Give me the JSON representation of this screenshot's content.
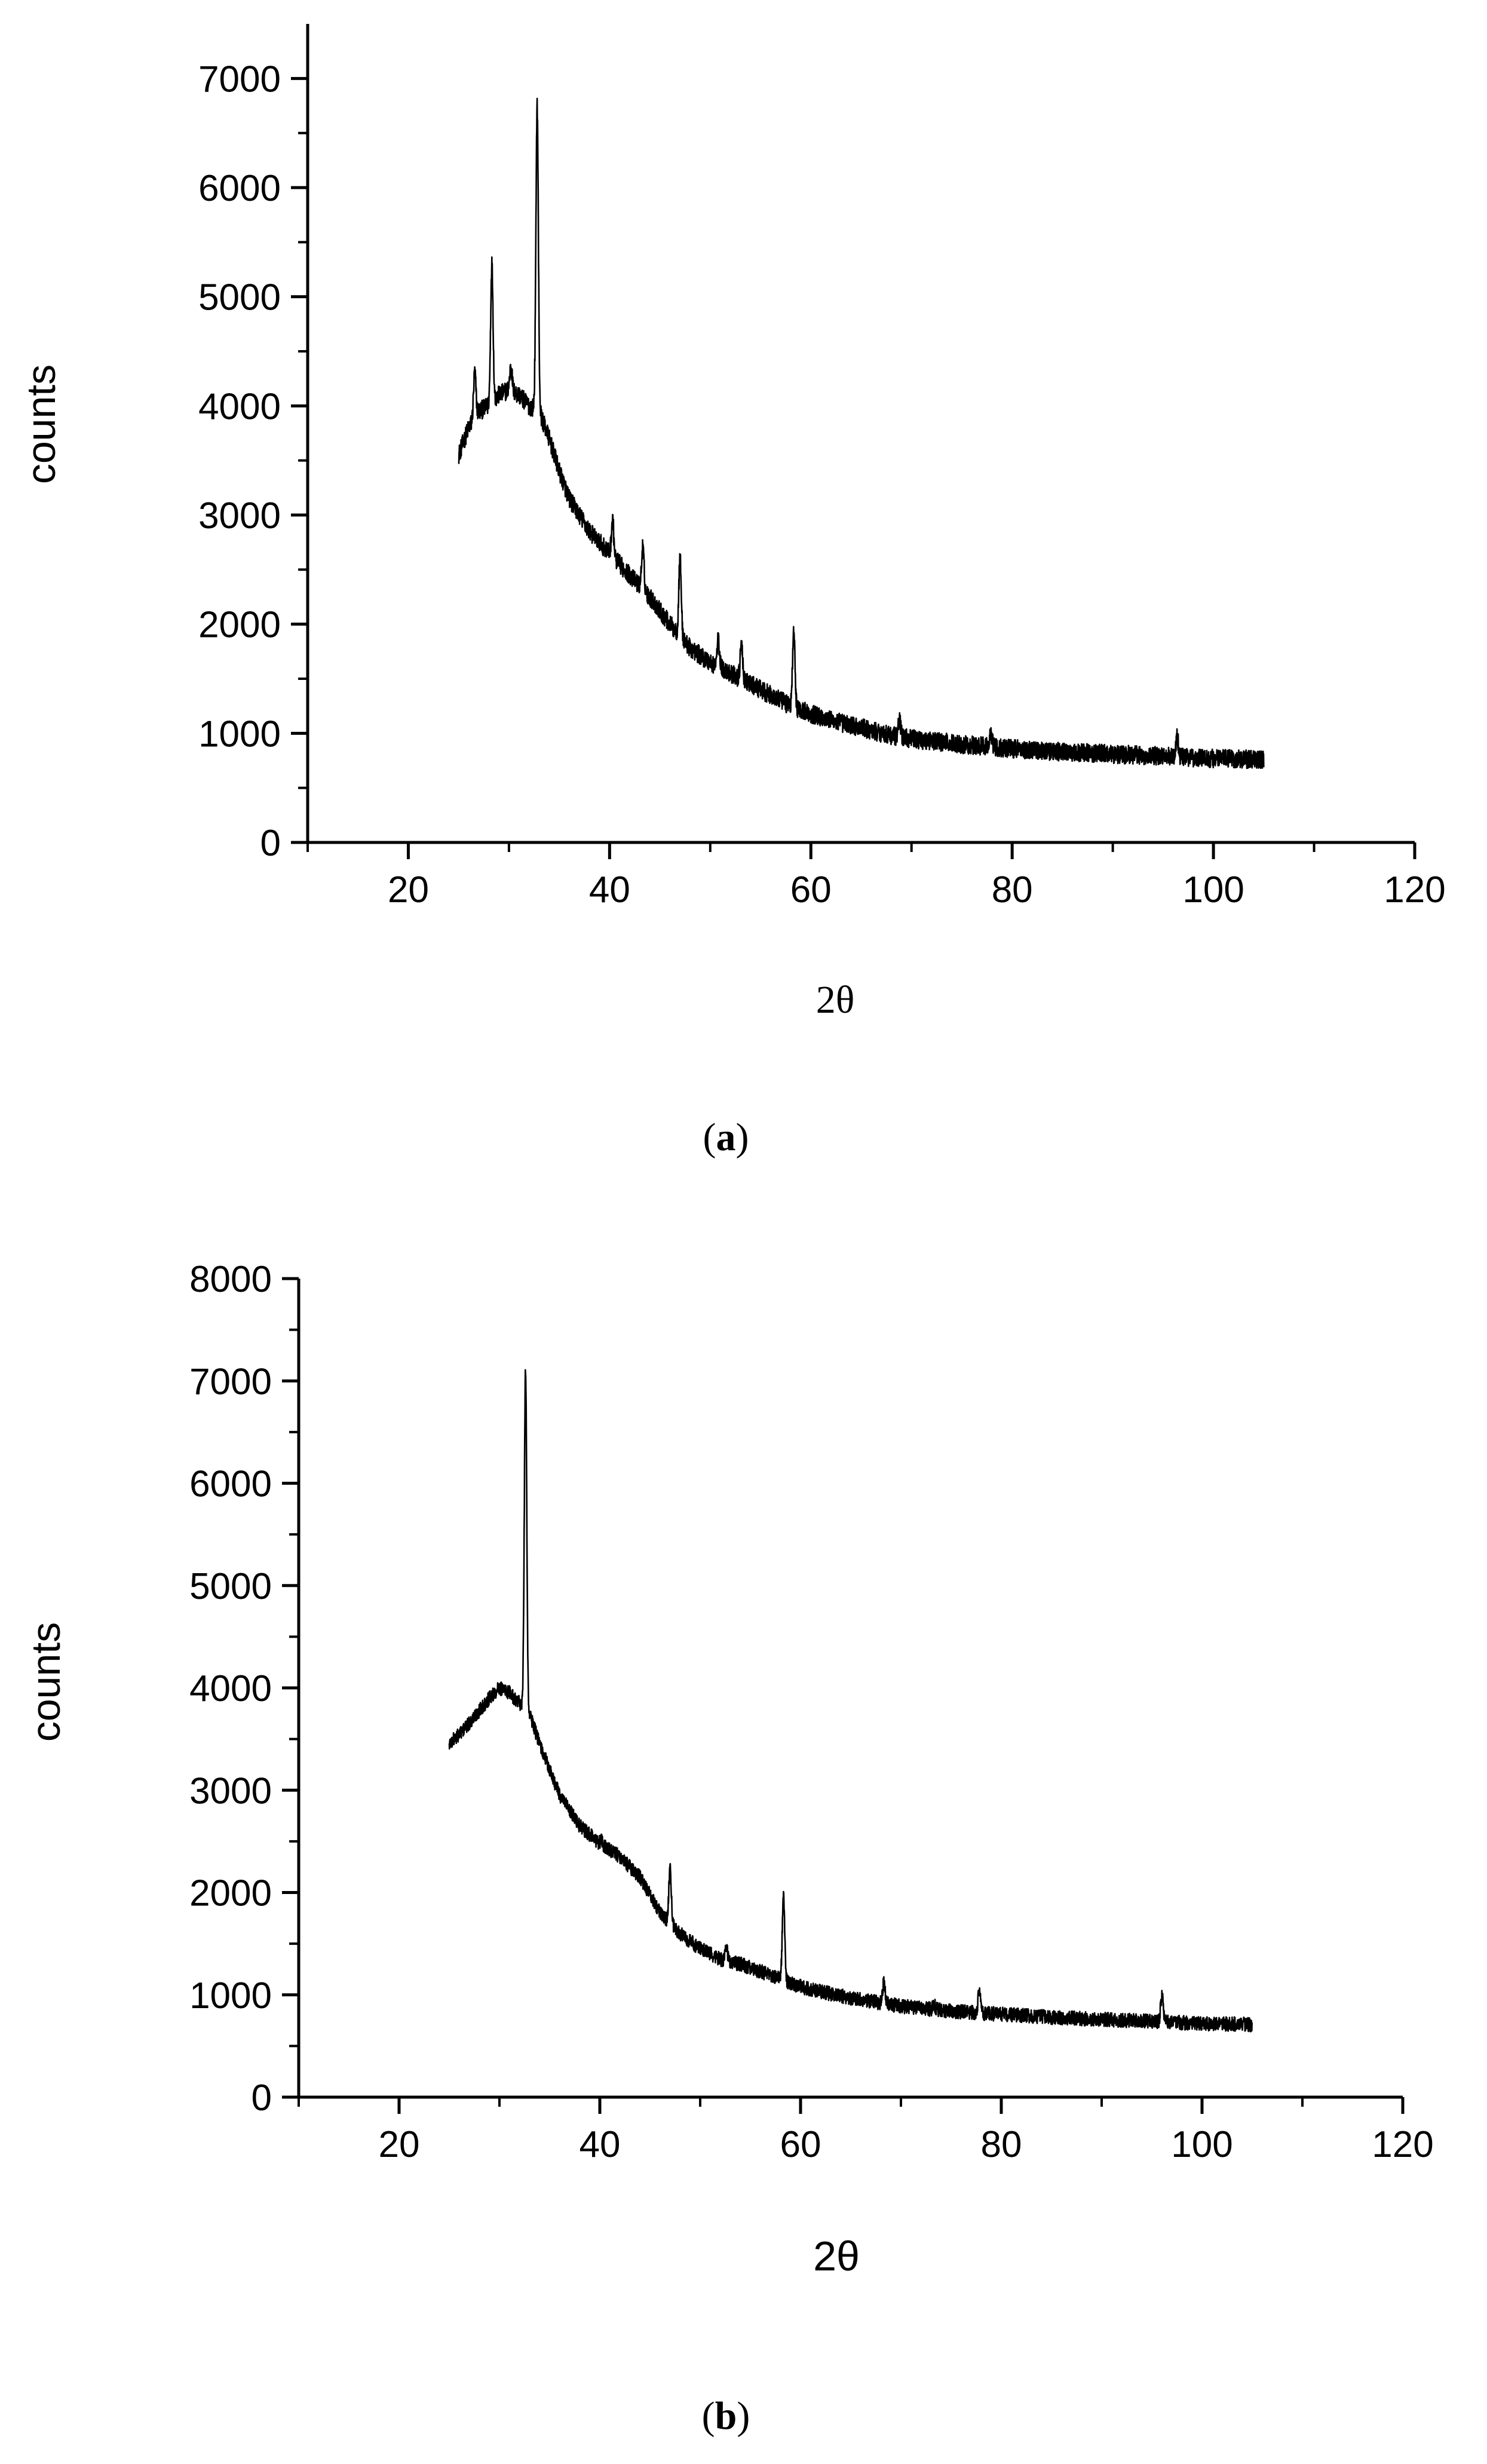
{
  "chart_data": [
    {
      "panel": "a",
      "caption_letter": "a",
      "type": "line",
      "xlabel": "2θ",
      "ylabel": "counts",
      "xlim": [
        10,
        120
      ],
      "ylim": [
        0,
        7500
      ],
      "xticks": [
        20,
        40,
        60,
        80,
        100,
        120
      ],
      "yticks": [
        0,
        1000,
        2000,
        3000,
        4000,
        5000,
        6000,
        7000
      ],
      "xtick_labels": [
        "20",
        "40",
        "60",
        "80",
        "100",
        "120"
      ],
      "ytick_labels": [
        "0",
        "1000",
        "2000",
        "3000",
        "4000",
        "5000",
        "6000",
        "7000"
      ],
      "grid": false,
      "legend": "none",
      "line_color": "#000000",
      "x_range": [
        25,
        105
      ],
      "baseline": [
        [
          25,
          3550
        ],
        [
          26,
          3800
        ],
        [
          27,
          3950
        ],
        [
          28,
          4000
        ],
        [
          29,
          4100
        ],
        [
          30,
          4150
        ],
        [
          31,
          4100
        ],
        [
          32,
          4000
        ],
        [
          33,
          3950
        ],
        [
          34,
          3700
        ],
        [
          35,
          3400
        ],
        [
          36,
          3150
        ],
        [
          38,
          2850
        ],
        [
          40,
          2650
        ],
        [
          42,
          2450
        ],
        [
          44,
          2250
        ],
        [
          46,
          2000
        ],
        [
          48,
          1780
        ],
        [
          50,
          1650
        ],
        [
          52,
          1550
        ],
        [
          54,
          1450
        ],
        [
          56,
          1350
        ],
        [
          58,
          1250
        ],
        [
          60,
          1180
        ],
        [
          62,
          1120
        ],
        [
          65,
          1050
        ],
        [
          68,
          980
        ],
        [
          70,
          950
        ],
        [
          75,
          900
        ],
        [
          80,
          860
        ],
        [
          85,
          830
        ],
        [
          90,
          810
        ],
        [
          95,
          790
        ],
        [
          100,
          770
        ],
        [
          105,
          760
        ]
      ],
      "peaks": [
        [
          26.6,
          4300
        ],
        [
          28.3,
          5300
        ],
        [
          30.2,
          4350
        ],
        [
          32.8,
          6750
        ],
        [
          40.3,
          2950
        ],
        [
          43.3,
          2700
        ],
        [
          47.0,
          2600
        ],
        [
          50.8,
          1850
        ],
        [
          53.1,
          1800
        ],
        [
          58.3,
          1920
        ],
        [
          68.8,
          1120
        ],
        [
          77.9,
          1000
        ],
        [
          96.4,
          970
        ]
      ],
      "noise": 85
    },
    {
      "panel": "b",
      "caption_letter": "b",
      "type": "line",
      "xlabel": "2θ",
      "ylabel": "counts",
      "xlim": [
        10,
        120
      ],
      "ylim": [
        0,
        8000
      ],
      "xticks": [
        20,
        40,
        60,
        80,
        100,
        120
      ],
      "yticks": [
        0,
        1000,
        2000,
        3000,
        4000,
        5000,
        6000,
        7000,
        8000
      ],
      "xtick_labels": [
        "20",
        "40",
        "60",
        "80",
        "100",
        "120"
      ],
      "ytick_labels": [
        "0",
        "1000",
        "2000",
        "3000",
        "4000",
        "5000",
        "6000",
        "7000",
        "8000"
      ],
      "grid": false,
      "legend": "none",
      "line_color": "#000000",
      "x_range": [
        25,
        105
      ],
      "baseline": [
        [
          25,
          3450
        ],
        [
          26,
          3550
        ],
        [
          27,
          3650
        ],
        [
          28,
          3780
        ],
        [
          29,
          3900
        ],
        [
          30,
          4000
        ],
        [
          31,
          3950
        ],
        [
          32,
          3850
        ],
        [
          33,
          3750
        ],
        [
          34,
          3450
        ],
        [
          35,
          3200
        ],
        [
          36,
          2950
        ],
        [
          38,
          2650
        ],
        [
          40,
          2480
        ],
        [
          42,
          2350
        ],
        [
          44,
          2150
        ],
        [
          46,
          1800
        ],
        [
          48,
          1600
        ],
        [
          50,
          1450
        ],
        [
          52,
          1350
        ],
        [
          54,
          1300
        ],
        [
          56,
          1230
        ],
        [
          58,
          1150
        ],
        [
          60,
          1080
        ],
        [
          62,
          1030
        ],
        [
          65,
          970
        ],
        [
          68,
          920
        ],
        [
          70,
          890
        ],
        [
          75,
          840
        ],
        [
          80,
          810
        ],
        [
          85,
          780
        ],
        [
          90,
          760
        ],
        [
          95,
          740
        ],
        [
          100,
          720
        ],
        [
          105,
          710
        ]
      ],
      "peaks": [
        [
          32.6,
          7100
        ],
        [
          40.2,
          2500
        ],
        [
          47.0,
          2250
        ],
        [
          52.6,
          1480
        ],
        [
          58.3,
          1960
        ],
        [
          68.3,
          1120
        ],
        [
          73.3,
          900
        ],
        [
          77.8,
          1030
        ],
        [
          96.0,
          1000
        ]
      ],
      "noise": 70
    }
  ]
}
